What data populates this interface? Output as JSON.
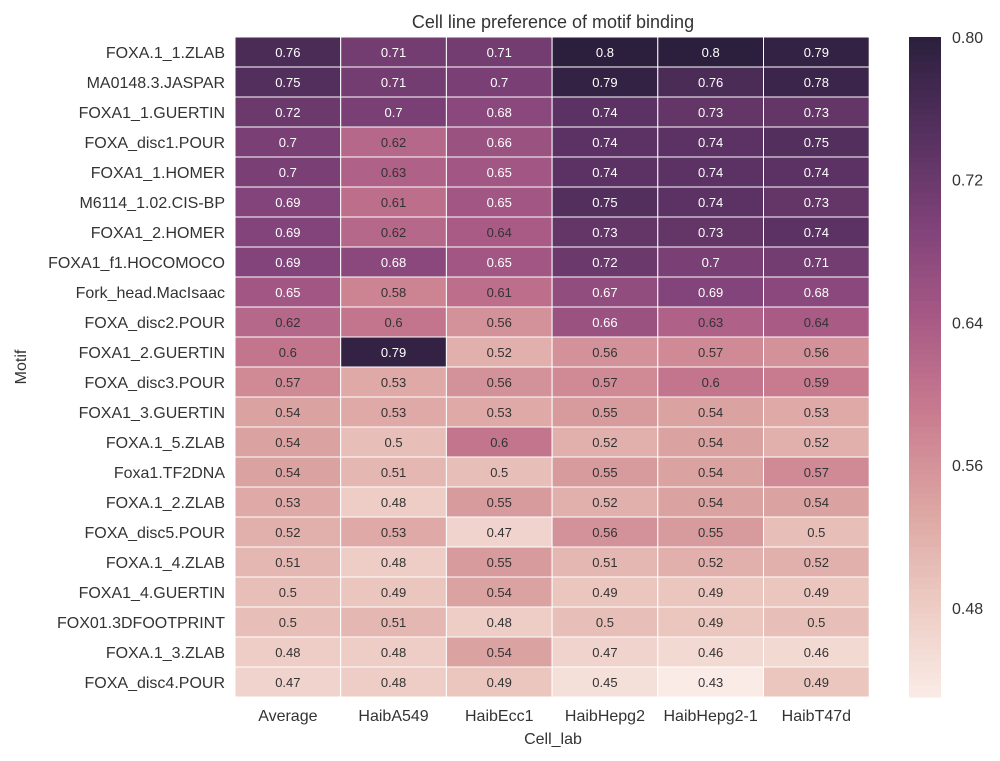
{
  "chart_data": {
    "type": "heatmap",
    "title": "Cell line preference of motif binding",
    "xlabel": "Cell_lab",
    "ylabel": "Motif",
    "columns": [
      "Average",
      "HaibA549",
      "HaibEcc1",
      "HaibHepg2",
      "HaibHepg2-1",
      "HaibT47d"
    ],
    "rows": [
      "FOXA.1_1.ZLAB",
      "MA0148.3.JASPAR",
      "FOXA1_1.GUERTIN",
      "FOXA_disc1.POUR",
      "FOXA1_1.HOMER",
      "M6114_1.02.CIS-BP",
      "FOXA1_2.HOMER",
      "FOXA1_f1.HOCOMOCO",
      "Fork_head.MacIsaac",
      "FOXA_disc2.POUR",
      "FOXA1_2.GUERTIN",
      "FOXA_disc3.POUR",
      "FOXA1_3.GUERTIN",
      "FOXA.1_5.ZLAB",
      "Foxa1.TF2DNA",
      "FOXA.1_2.ZLAB",
      "FOXA_disc5.POUR",
      "FOXA.1_4.ZLAB",
      "FOXA1_4.GUERTIN",
      "FOX01.3DFOOTPRINT",
      "FOXA.1_3.ZLAB",
      "FOXA_disc4.POUR"
    ],
    "values": [
      [
        0.76,
        0.71,
        0.71,
        0.8,
        0.8,
        0.79
      ],
      [
        0.75,
        0.71,
        0.7,
        0.79,
        0.76,
        0.78
      ],
      [
        0.72,
        0.7,
        0.68,
        0.74,
        0.73,
        0.73
      ],
      [
        0.7,
        0.62,
        0.66,
        0.74,
        0.74,
        0.75
      ],
      [
        0.7,
        0.63,
        0.65,
        0.74,
        0.74,
        0.74
      ],
      [
        0.69,
        0.61,
        0.65,
        0.75,
        0.74,
        0.73
      ],
      [
        0.69,
        0.62,
        0.64,
        0.73,
        0.73,
        0.74
      ],
      [
        0.69,
        0.68,
        0.65,
        0.72,
        0.7,
        0.71
      ],
      [
        0.65,
        0.58,
        0.61,
        0.67,
        0.69,
        0.68
      ],
      [
        0.62,
        0.6,
        0.56,
        0.66,
        0.63,
        0.64
      ],
      [
        0.6,
        0.79,
        0.52,
        0.56,
        0.57,
        0.56
      ],
      [
        0.57,
        0.53,
        0.56,
        0.57,
        0.6,
        0.59
      ],
      [
        0.54,
        0.53,
        0.53,
        0.55,
        0.54,
        0.53
      ],
      [
        0.54,
        0.5,
        0.6,
        0.52,
        0.54,
        0.52
      ],
      [
        0.54,
        0.51,
        0.5,
        0.55,
        0.54,
        0.57
      ],
      [
        0.53,
        0.48,
        0.55,
        0.52,
        0.54,
        0.54
      ],
      [
        0.52,
        0.53,
        0.47,
        0.56,
        0.55,
        0.5
      ],
      [
        0.51,
        0.48,
        0.55,
        0.51,
        0.52,
        0.52
      ],
      [
        0.5,
        0.49,
        0.54,
        0.49,
        0.49,
        0.49
      ],
      [
        0.5,
        0.51,
        0.48,
        0.5,
        0.49,
        0.5
      ],
      [
        0.48,
        0.48,
        0.54,
        0.47,
        0.46,
        0.46
      ],
      [
        0.47,
        0.48,
        0.49,
        0.45,
        0.43,
        0.49
      ]
    ],
    "colorbar": {
      "range": [
        0.43,
        0.8
      ],
      "ticks": [
        "0.80",
        "0.72",
        "0.64",
        "0.56",
        "0.48"
      ]
    },
    "colormap": [
      "#faebe6",
      "#eccbc3",
      "#dca5a2",
      "#c97c8f",
      "#a85a85",
      "#7f4279",
      "#55305f",
      "#2b1f3d"
    ]
  }
}
